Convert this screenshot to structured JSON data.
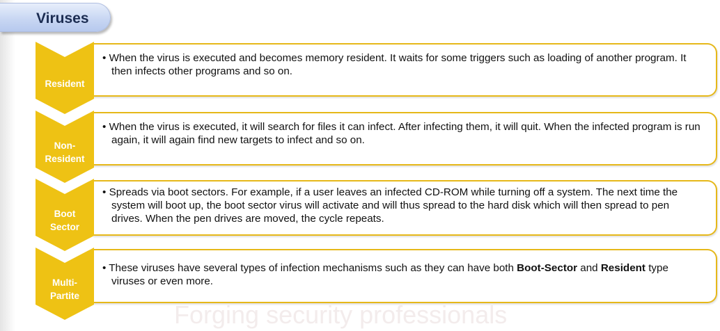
{
  "slide": {
    "title": "Viruses",
    "watermark": "Forging security professionals"
  },
  "colors": {
    "accent_gold": "#e6b819",
    "chevron_fill": "#eec214",
    "title_tab_fill": "#c9d7f3",
    "title_text": "#1c2d52"
  },
  "rows": [
    {
      "label": "Resident",
      "bullet": "•",
      "text": "When the virus is executed and becomes memory resident. It waits for some triggers such as loading of another program. It then infects other programs and so on."
    },
    {
      "label_line1": "Non-",
      "label_line2": "Resident",
      "bullet": "•",
      "text": "When the virus is executed, it will search for files it can infect. After infecting them, it will quit. When the infected program is run again, it will again find new targets to infect and so on."
    },
    {
      "label_line1": "Boot",
      "label_line2": "Sector",
      "bullet": "•",
      "text": "Spreads via boot sectors. For example, if a user leaves an infected CD-ROM while turning off a system. The next time the system will boot up, the boot sector virus will activate and will thus spread to the hard disk which will then spread to pen drives. When the pen drives are moved, the cycle repeats."
    },
    {
      "label_line1": "Multi-",
      "label_line2": "Partite",
      "bullet": "•",
      "text_part1": "These viruses have several types of infection mechanisms such as they can have both ",
      "text_bold1": "Boot-Sector",
      "text_part2": " and ",
      "text_bold2": "Resident",
      "text_part3": " type viruses or even more."
    }
  ]
}
